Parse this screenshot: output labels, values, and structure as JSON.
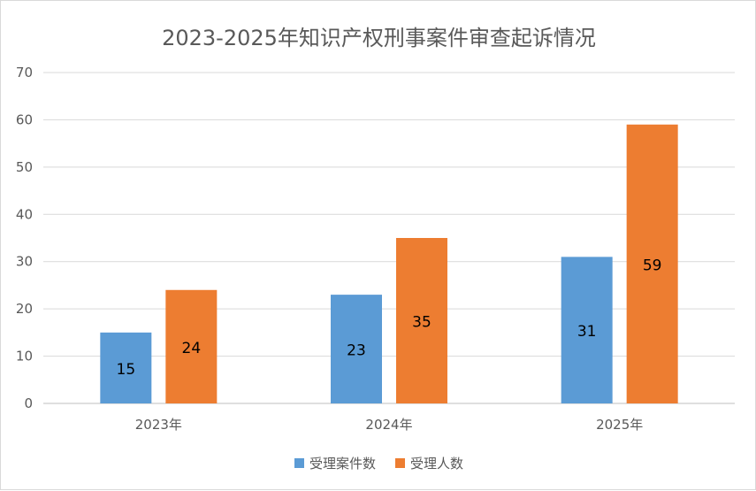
{
  "chart_data": {
    "type": "bar",
    "title": "2023-2025年知识产权刑事案件审查起诉情况",
    "categories": [
      "2023年",
      "2024年",
      "2025年"
    ],
    "series": [
      {
        "name": "受理案件数",
        "values": [
          15,
          23,
          31
        ],
        "color": "#5b9bd5"
      },
      {
        "name": "受理人数",
        "values": [
          24,
          35,
          59
        ],
        "color": "#ed7d31"
      }
    ],
    "ylim": [
      0,
      70
    ],
    "yticks": [
      0,
      10,
      20,
      30,
      40,
      50,
      60,
      70
    ],
    "grid": true,
    "legend": "bottom",
    "xlabel": "",
    "ylabel": ""
  }
}
